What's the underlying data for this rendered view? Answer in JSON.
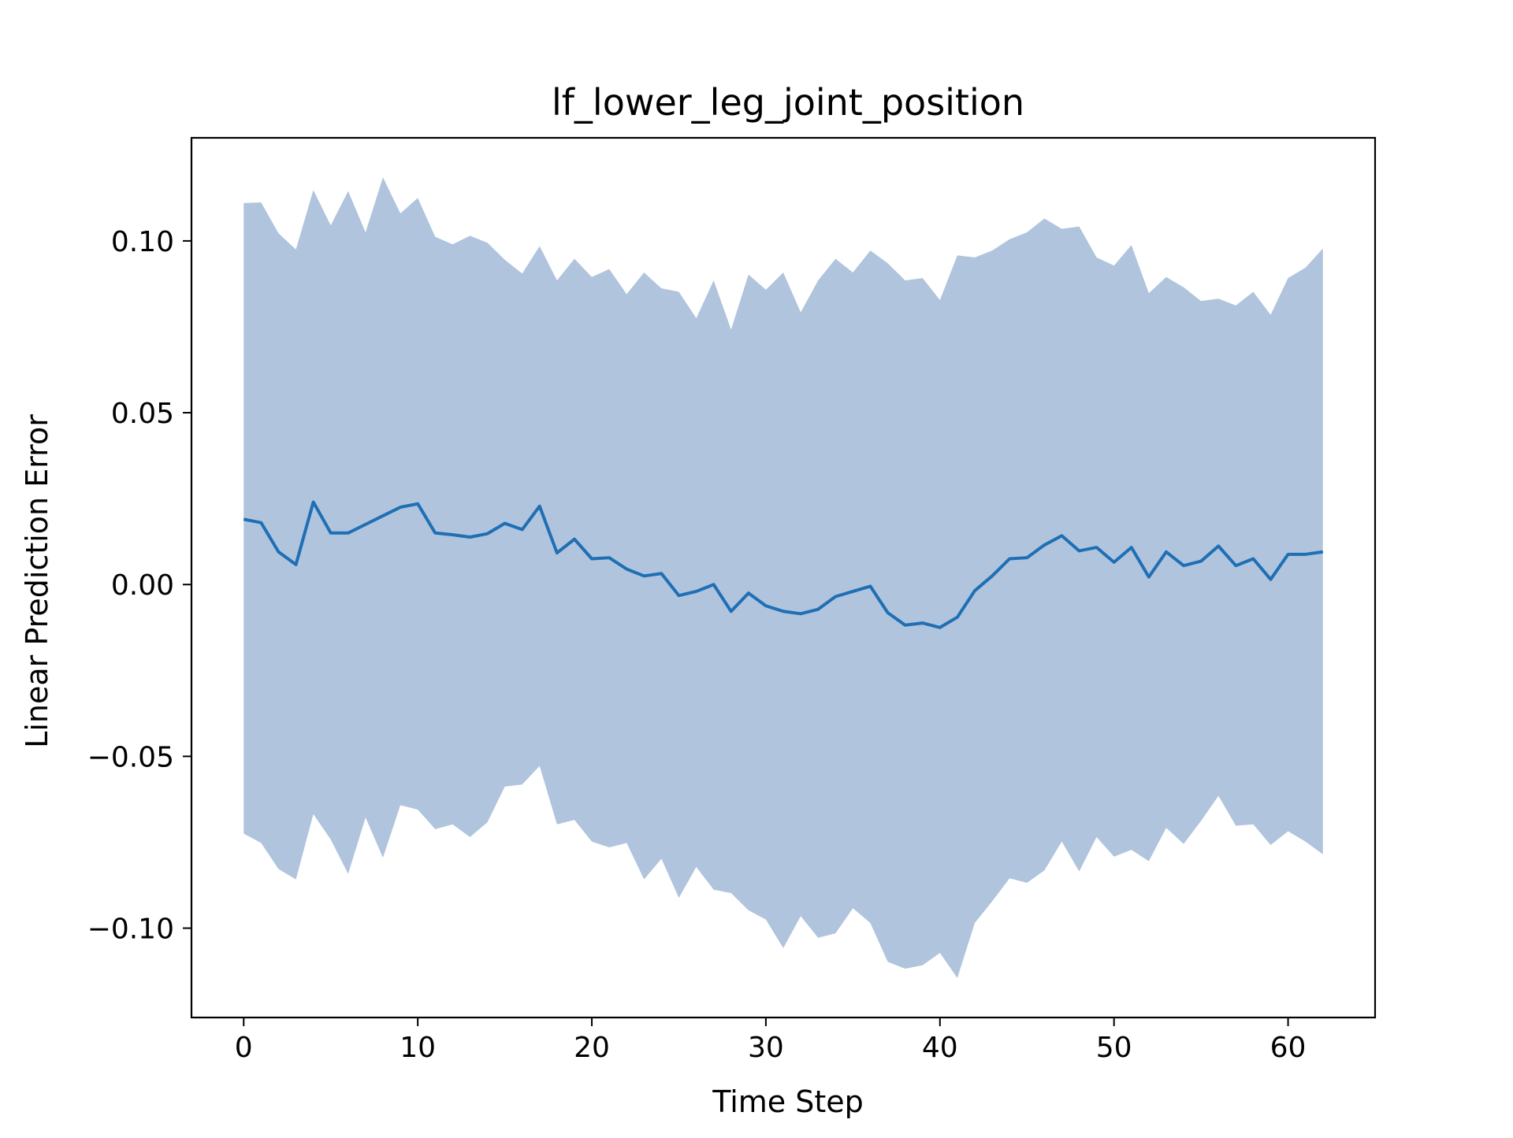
{
  "colors": {
    "line": "#1f6fb4",
    "band": "#b0c4de",
    "axis": "#000000",
    "background": "#ffffff"
  },
  "chart_data": {
    "type": "line",
    "title": "lf_lower_leg_joint_position",
    "xlabel": "Time Step",
    "ylabel": "Linear Prediction Error",
    "xlim": [
      -3,
      65
    ],
    "ylim": [
      -0.126,
      0.13
    ],
    "xticks": [
      0,
      10,
      20,
      30,
      40,
      50,
      60
    ],
    "yticks": [
      0.1,
      0.05,
      0.0,
      -0.05,
      -0.1
    ],
    "xtick_labels": [
      "0",
      "10",
      "20",
      "30",
      "40",
      "50",
      "60"
    ],
    "ytick_labels": [
      "0.10",
      "0.05",
      "0.00",
      "−0.05",
      "−0.10"
    ],
    "grid": false,
    "x": [
      0,
      1,
      2,
      3,
      4,
      5,
      6,
      7,
      8,
      9,
      10,
      11,
      12,
      13,
      14,
      15,
      16,
      17,
      18,
      19,
      20,
      21,
      22,
      23,
      24,
      25,
      26,
      27,
      28,
      29,
      30,
      31,
      32,
      33,
      34,
      35,
      36,
      37,
      38,
      39,
      40,
      41,
      42,
      43,
      44,
      45,
      46,
      47,
      48,
      49,
      50,
      51,
      52,
      53,
      54,
      55,
      56,
      57,
      58,
      59,
      60,
      61,
      62
    ],
    "series": [
      {
        "values": [
          0.019,
          0.018,
          0.0095,
          0.0058,
          0.024,
          0.015,
          0.015,
          0.0175,
          0.02,
          0.0225,
          0.0235,
          0.015,
          0.0145,
          0.0138,
          0.0148,
          0.0178,
          0.016,
          0.0228,
          0.0092,
          0.0132,
          0.0075,
          0.0078,
          0.0045,
          0.0025,
          0.0032,
          -0.0032,
          -0.002,
          0.0,
          -0.0078,
          -0.0025,
          -0.0062,
          -0.0078,
          -0.0085,
          -0.0072,
          -0.0035,
          -0.002,
          -0.0005,
          -0.0082,
          -0.0118,
          -0.0112,
          -0.0125,
          -0.0095,
          -0.0018,
          0.0025,
          0.0075,
          0.0078,
          0.0115,
          0.0142,
          0.0098,
          0.0108,
          0.0065,
          0.0108,
          0.0022,
          0.0095,
          0.0055,
          0.0068,
          0.0112,
          0.0055,
          0.0075,
          0.0015,
          0.0088,
          0.0088,
          0.0095
        ],
        "upper": [
          0.111,
          0.1112,
          0.1022,
          0.0975,
          0.1148,
          0.1045,
          0.1145,
          0.1025,
          0.1185,
          0.108,
          0.1125,
          0.1012,
          0.099,
          0.1015,
          0.0995,
          0.0945,
          0.0905,
          0.0985,
          0.0885,
          0.0948,
          0.0895,
          0.0918,
          0.0845,
          0.0908,
          0.0862,
          0.0852,
          0.0775,
          0.0885,
          0.0742,
          0.0902,
          0.0858,
          0.0908,
          0.0792,
          0.0885,
          0.0948,
          0.0908,
          0.0972,
          0.0935,
          0.0885,
          0.0892,
          0.0828,
          0.0958,
          0.0952,
          0.0972,
          0.1005,
          0.1025,
          0.1065,
          0.1035,
          0.1042,
          0.0952,
          0.0928,
          0.0988,
          0.0848,
          0.0895,
          0.0865,
          0.0825,
          0.0832,
          0.0812,
          0.0852,
          0.0785,
          0.0892,
          0.0922,
          0.0978
        ],
        "lower": [
          -0.0725,
          -0.0752,
          -0.0828,
          -0.0858,
          -0.0668,
          -0.0742,
          -0.0842,
          -0.0678,
          -0.0795,
          -0.0642,
          -0.0655,
          -0.0712,
          -0.0698,
          -0.0735,
          -0.0692,
          -0.0588,
          -0.0582,
          -0.0528,
          -0.0698,
          -0.0685,
          -0.0748,
          -0.0765,
          -0.0752,
          -0.0858,
          -0.0798,
          -0.0912,
          -0.0822,
          -0.0888,
          -0.0898,
          -0.0948,
          -0.0975,
          -0.1058,
          -0.0965,
          -0.1028,
          -0.1015,
          -0.0942,
          -0.0985,
          -0.1098,
          -0.1118,
          -0.1108,
          -0.1072,
          -0.1145,
          -0.0985,
          -0.0922,
          -0.0855,
          -0.0868,
          -0.0832,
          -0.0748,
          -0.0835,
          -0.0735,
          -0.0792,
          -0.0772,
          -0.0805,
          -0.0708,
          -0.0755,
          -0.0688,
          -0.0615,
          -0.0702,
          -0.0698,
          -0.0758,
          -0.0718,
          -0.0748,
          -0.0785
        ]
      }
    ]
  }
}
